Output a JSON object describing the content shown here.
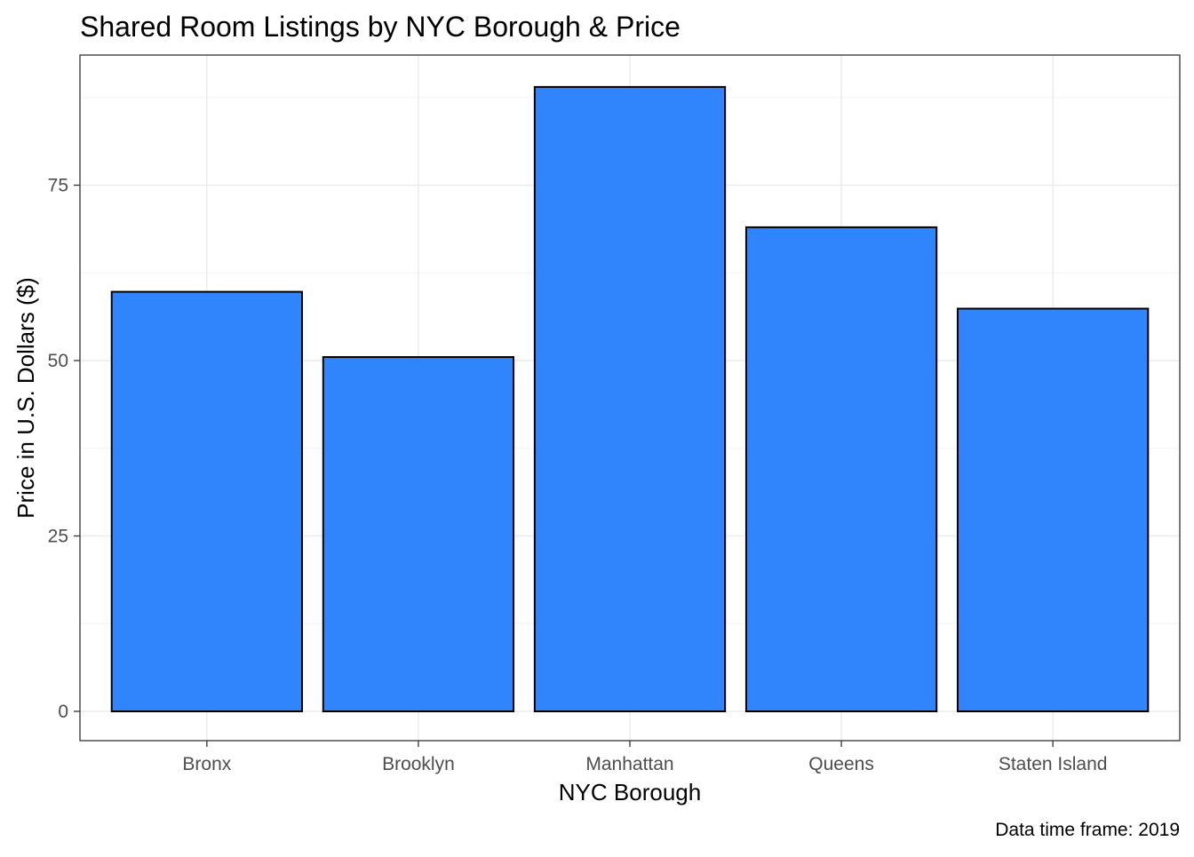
{
  "chart_data": {
    "type": "bar",
    "title": "Shared Room Listings by NYC Borough & Price",
    "xlabel": "NYC Borough",
    "ylabel": "Price in U.S. Dollars ($)",
    "caption": "Data time frame: 2019",
    "categories": [
      "Bronx",
      "Brooklyn",
      "Manhattan",
      "Queens",
      "Staten Island"
    ],
    "values": [
      59.8,
      50.5,
      89.0,
      69.0,
      57.4
    ],
    "ylim": [
      0,
      93.5
    ],
    "yticks": [
      0,
      25,
      50,
      75
    ],
    "ytick_labels": [
      "0",
      "25",
      "50",
      "75"
    ],
    "grid": true,
    "legend": "none",
    "colors": {
      "bar_fill": "#3185FC",
      "bar_stroke": "#000000",
      "grid_major": "#EBEBEB",
      "grid_minor": "#F4F4F4",
      "panel_border": "#333333",
      "tick_text": "#4D4D4D",
      "title_text": "#000000"
    }
  }
}
